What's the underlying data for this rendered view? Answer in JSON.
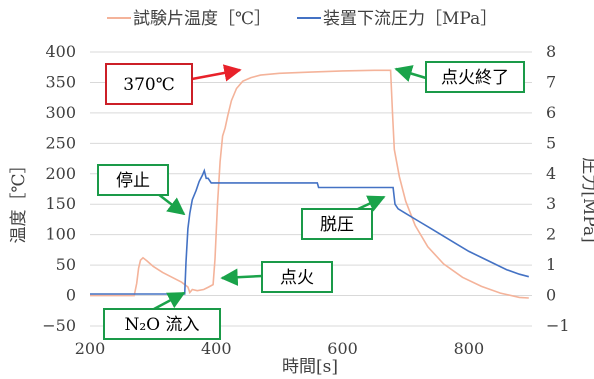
{
  "chart_data": {
    "type": "line",
    "title": "",
    "xlabel": "時間[s]",
    "ylabel_left": "温度［℃］",
    "ylabel_right": "圧力[MPa]",
    "xlim": [
      200,
      900
    ],
    "ylim_left": [
      -50,
      400
    ],
    "ylim_right": [
      -1,
      8
    ],
    "x_ticks": [
      200,
      400,
      600,
      800
    ],
    "y_ticks_left": [
      -50,
      0,
      50,
      100,
      150,
      200,
      250,
      300,
      350,
      400
    ],
    "y_ticks_right": [
      -1,
      0,
      1,
      2,
      3,
      4,
      5,
      6,
      7,
      8
    ],
    "grid": "horizontal",
    "legend_position": "top",
    "series": [
      {
        "name": "試験片温度［℃］",
        "axis": "left",
        "color": "#f4b39a",
        "points": [
          [
            200,
            0
          ],
          [
            270,
            0
          ],
          [
            274,
            20
          ],
          [
            277,
            45
          ],
          [
            280,
            58
          ],
          [
            284,
            62
          ],
          [
            290,
            57
          ],
          [
            300,
            48
          ],
          [
            315,
            38
          ],
          [
            330,
            30
          ],
          [
            345,
            22
          ],
          [
            355,
            14
          ],
          [
            358,
            5
          ],
          [
            362,
            10
          ],
          [
            370,
            8
          ],
          [
            380,
            10
          ],
          [
            388,
            14
          ],
          [
            395,
            18
          ],
          [
            398,
            60
          ],
          [
            402,
            150
          ],
          [
            406,
            220
          ],
          [
            410,
            262
          ],
          [
            414,
            275
          ],
          [
            418,
            295
          ],
          [
            424,
            320
          ],
          [
            432,
            340
          ],
          [
            442,
            352
          ],
          [
            455,
            358
          ],
          [
            470,
            362
          ],
          [
            500,
            365
          ],
          [
            550,
            367
          ],
          [
            600,
            369
          ],
          [
            650,
            370
          ],
          [
            676,
            370
          ],
          [
            679,
            300
          ],
          [
            682,
            240
          ],
          [
            690,
            195
          ],
          [
            700,
            155
          ],
          [
            715,
            115
          ],
          [
            735,
            80
          ],
          [
            760,
            52
          ],
          [
            790,
            30
          ],
          [
            820,
            15
          ],
          [
            850,
            4
          ],
          [
            880,
            -3
          ],
          [
            895,
            -4
          ]
        ]
      },
      {
        "name": "装置下流圧力［MPa］",
        "axis": "right",
        "color": "#4472c4",
        "points": [
          [
            200,
            0.05
          ],
          [
            350,
            0.05
          ],
          [
            352,
            1.1
          ],
          [
            355,
            2.2
          ],
          [
            358,
            2.7
          ],
          [
            362,
            3.15
          ],
          [
            368,
            3.45
          ],
          [
            373,
            3.75
          ],
          [
            378,
            3.95
          ],
          [
            381,
            4.1
          ],
          [
            384,
            3.85
          ],
          [
            387,
            3.85
          ],
          [
            392,
            3.7
          ],
          [
            560,
            3.7
          ],
          [
            562,
            3.55
          ],
          [
            680,
            3.55
          ],
          [
            683,
            3.0
          ],
          [
            688,
            2.85
          ],
          [
            700,
            2.7
          ],
          [
            720,
            2.45
          ],
          [
            740,
            2.2
          ],
          [
            760,
            1.95
          ],
          [
            780,
            1.7
          ],
          [
            800,
            1.45
          ],
          [
            820,
            1.25
          ],
          [
            840,
            1.05
          ],
          [
            860,
            0.85
          ],
          [
            880,
            0.7
          ],
          [
            895,
            0.62
          ]
        ]
      }
    ],
    "annotations": [
      {
        "id": "temp",
        "text": "370℃"
      },
      {
        "id": "ignition_end",
        "text": "点火終了"
      },
      {
        "id": "stop",
        "text": "停止"
      },
      {
        "id": "depress",
        "text": "脱圧"
      },
      {
        "id": "ignition",
        "text": "点火"
      },
      {
        "id": "n2o",
        "text": "N₂O 流入"
      }
    ]
  },
  "colors": {
    "arrow_red": "#e8212a",
    "arrow_green": "#1aa34a",
    "box_red": "#cc1f27",
    "box_green": "#1a9a48",
    "grid": "#d9d9d9",
    "axis_text": "#404040"
  }
}
